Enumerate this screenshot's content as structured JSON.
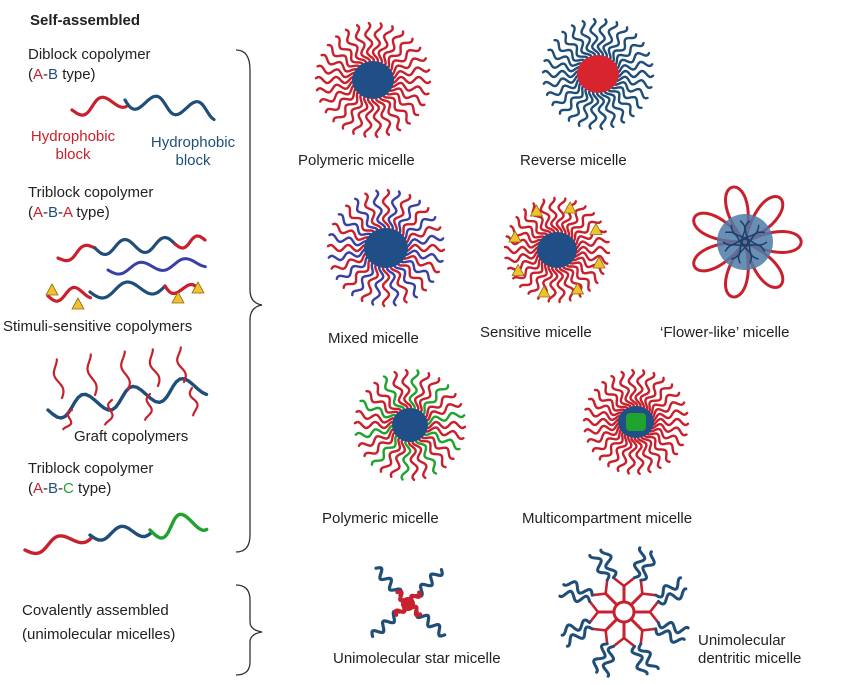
{
  "colors": {
    "red": "#c8202c",
    "blue": "#1f4e79",
    "green": "#1fa22e",
    "core_blue": "#1f4f86",
    "yellow": "#f2c12e",
    "purple_blue": "#3a3fa6"
  },
  "left": {
    "title": "Self-assembled",
    "diblock": {
      "line1": "Diblock copolymer",
      "open": "(",
      "a": "A",
      "dash1": "-",
      "b": "B",
      "rest": " type)"
    },
    "hydrophobic_red": [
      "Hydrophobic",
      "block"
    ],
    "hydrophobic_blue": [
      "Hydrophobic",
      "block"
    ],
    "triblock_aba": {
      "line1": "Triblock copolymer",
      "open": "(",
      "a": "A",
      "dash1": "-",
      "b": "B",
      "dash2": "-",
      "a2": "A",
      "rest": " type)"
    },
    "stimuli": "Stimuli-sensitive copolymers",
    "graft": "Graft copolymers",
    "triblock_abc": {
      "line1": "Triblock copolymer",
      "open": "(",
      "a": "A",
      "dash1": "-",
      "b": "B",
      "dash2": "-",
      "c": "C",
      "rest": " type)"
    },
    "covalent": [
      "Covalently assembled",
      "(unimolecular micelles)"
    ]
  },
  "micelles": {
    "polymeric1": "Polymeric micelle",
    "reverse": "Reverse micelle",
    "mixed": "Mixed micelle",
    "sensitive": "Sensitive micelle",
    "flower": "‘Flower-like’ micelle",
    "polymeric2": "Polymeric micelle",
    "multicompartment": "Multicompartment micelle",
    "star": "Unimolecular star micelle",
    "dendritic": [
      "Unimolecular",
      "dentritic micelle"
    ]
  }
}
